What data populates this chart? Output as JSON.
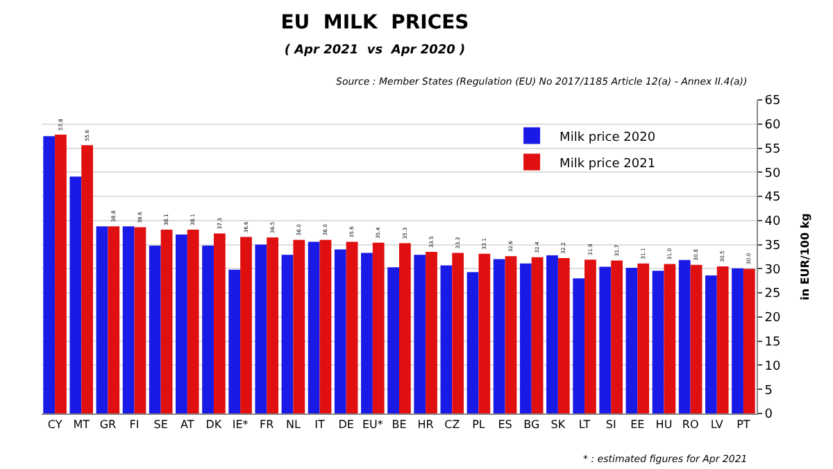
{
  "chart_data": {
    "type": "bar",
    "title": "EU  MILK  PRICES",
    "subtitle": "( Apr 2021  vs  Apr 2020 )",
    "ylabel": "in EUR/100 kg",
    "annotations": [
      "Source : Member States (Regulation (EU) No 2017/1185 Article 12(a) - Annex II.4(a))",
      "* : estimated figures for Apr 2021"
    ],
    "categories": [
      "CY",
      "MT",
      "GR",
      "FI",
      "SE",
      "AT",
      "DK",
      "IE*",
      "FR",
      "NL",
      "IT",
      "DE",
      "EU*",
      "BE",
      "HR",
      "CZ",
      "PL",
      "ES",
      "BG",
      "SK",
      "LT",
      "SI",
      "EE",
      "HU",
      "RO",
      "LV",
      "PT"
    ],
    "series": [
      {
        "name": "Milk price 2020",
        "color": "#1a1ae6",
        "values": [
          57.5,
          49.1,
          38.8,
          38.8,
          34.8,
          37.1,
          34.8,
          29.8,
          35.0,
          32.9,
          35.6,
          34.0,
          33.3,
          30.3,
          32.9,
          30.7,
          29.3,
          32.0,
          31.1,
          32.8,
          28.0,
          30.4,
          30.2,
          29.6,
          31.8,
          28.6,
          30.1
        ]
      },
      {
        "name": "Milk price 2021",
        "color": "#e01010",
        "values": [
          57.8,
          55.6,
          38.8,
          38.6,
          38.1,
          38.1,
          37.3,
          36.6,
          36.5,
          36.0,
          36.0,
          35.6,
          35.4,
          35.3,
          33.5,
          33.3,
          33.1,
          32.6,
          32.4,
          32.2,
          31.9,
          31.7,
          31.1,
          31.0,
          30.8,
          30.5,
          30.0
        ],
        "value_labels": [
          "57.8",
          "55.6",
          "38.8",
          "38.6",
          "38.1",
          "38.1",
          "37.3",
          "36.6",
          "36.5",
          "36.0",
          "36.0",
          "35.6",
          "35.4",
          "35.3",
          "33.5",
          "33.3",
          "33.1",
          "32.6",
          "32.4",
          "32.2",
          "31.9",
          "31.7",
          "31.1",
          "31.0",
          "30.8",
          "30.5",
          "30.0"
        ]
      }
    ],
    "ylim": [
      0,
      65
    ],
    "yticks": [
      0,
      5,
      10,
      15,
      20,
      25,
      30,
      35,
      40,
      45,
      50,
      55,
      60,
      65
    ],
    "grid": "y",
    "legend": "top right"
  }
}
